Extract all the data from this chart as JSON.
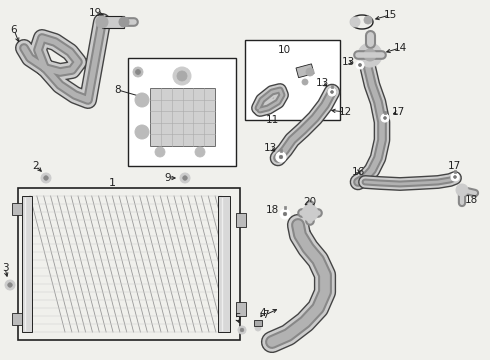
{
  "bg_color": "#f0f0ec",
  "line_color": "#222222",
  "figsize": [
    4.9,
    3.6
  ],
  "dpi": 100,
  "hose_color": "#888888",
  "hose_dark": "#555555",
  "hose_light": "#bbbbbb",
  "box_color": "#ffffff",
  "part_color": "#aaaaaa",
  "grid_color": "#999999"
}
